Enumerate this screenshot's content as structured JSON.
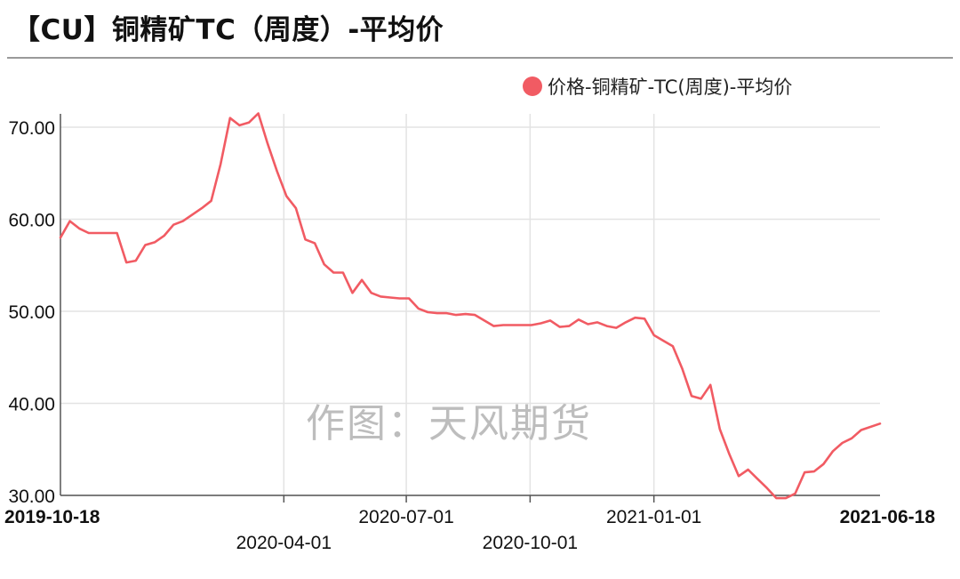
{
  "title": "【CU】铜精矿TC（周度）-平均价",
  "watermark": "作图：天风期货",
  "colors": {
    "series": "#f15b63",
    "grid": "#e3e3e3",
    "axis": "#555555",
    "text": "#111111"
  },
  "chart_data": {
    "type": "line",
    "title": "【CU】铜精矿TC（周度）-平均价",
    "xlabel": "",
    "ylabel": "",
    "ylim": [
      30,
      71
    ],
    "yticks": [
      30,
      40,
      50,
      60,
      70
    ],
    "ytick_labels": [
      "30.00",
      "40.00",
      "50.00",
      "60.00",
      "70.00"
    ],
    "x_tick_labels": [
      {
        "label": "2019-10-18",
        "date": "2019-10-18",
        "bold": true
      },
      {
        "label": "2020-04-01",
        "date": "2020-04-01",
        "bold": false
      },
      {
        "label": "2020-07-01",
        "date": "2020-07-01",
        "bold": false
      },
      {
        "label": "2020-10-01",
        "date": "2020-10-01",
        "bold": false
      },
      {
        "label": "2021-01-01",
        "date": "2021-01-01",
        "bold": false
      },
      {
        "label": "2021-06-18",
        "date": "2021-06-18",
        "bold": true
      }
    ],
    "grid": true,
    "legend_position": "top-right",
    "series": [
      {
        "name": "价格-铜精矿-TC(周度)-平均价",
        "color": "#f15b63",
        "points": [
          [
            "2019-10-18",
            58.0
          ],
          [
            "2019-10-25",
            59.8
          ],
          [
            "2019-11-01",
            59.0
          ],
          [
            "2019-11-08",
            58.5
          ],
          [
            "2019-11-15",
            58.5
          ],
          [
            "2019-11-22",
            58.5
          ],
          [
            "2019-11-29",
            58.5
          ],
          [
            "2019-12-06",
            55.3
          ],
          [
            "2019-12-13",
            55.5
          ],
          [
            "2019-12-20",
            57.2
          ],
          [
            "2019-12-27",
            57.5
          ],
          [
            "2020-01-03",
            58.2
          ],
          [
            "2020-01-10",
            59.4
          ],
          [
            "2020-01-17",
            59.8
          ],
          [
            "2020-01-24",
            60.5
          ],
          [
            "2020-01-31",
            61.2
          ],
          [
            "2020-02-07",
            62.0
          ],
          [
            "2020-02-14",
            66.0
          ],
          [
            "2020-02-21",
            71.0
          ],
          [
            "2020-02-28",
            70.2
          ],
          [
            "2020-03-06",
            70.5
          ],
          [
            "2020-03-13",
            71.5
          ],
          [
            "2020-03-20",
            68.2
          ],
          [
            "2020-03-27",
            65.2
          ],
          [
            "2020-04-03",
            62.5
          ],
          [
            "2020-04-10",
            61.2
          ],
          [
            "2020-04-17",
            57.8
          ],
          [
            "2020-04-24",
            57.4
          ],
          [
            "2020-05-01",
            55.1
          ],
          [
            "2020-05-08",
            54.2
          ],
          [
            "2020-05-15",
            54.2
          ],
          [
            "2020-05-22",
            52.0
          ],
          [
            "2020-05-29",
            53.4
          ],
          [
            "2020-06-05",
            52.0
          ],
          [
            "2020-06-12",
            51.6
          ],
          [
            "2020-06-19",
            51.5
          ],
          [
            "2020-06-26",
            51.4
          ],
          [
            "2020-07-03",
            51.4
          ],
          [
            "2020-07-10",
            50.3
          ],
          [
            "2020-07-17",
            49.9
          ],
          [
            "2020-07-24",
            49.8
          ],
          [
            "2020-07-31",
            49.8
          ],
          [
            "2020-08-07",
            49.6
          ],
          [
            "2020-08-14",
            49.7
          ],
          [
            "2020-08-21",
            49.6
          ],
          [
            "2020-08-28",
            49.0
          ],
          [
            "2020-09-04",
            48.4
          ],
          [
            "2020-09-11",
            48.5
          ],
          [
            "2020-09-18",
            48.5
          ],
          [
            "2020-09-25",
            48.5
          ],
          [
            "2020-10-02",
            48.5
          ],
          [
            "2020-10-09",
            48.7
          ],
          [
            "2020-10-16",
            49.0
          ],
          [
            "2020-10-23",
            48.3
          ],
          [
            "2020-10-30",
            48.4
          ],
          [
            "2020-11-06",
            49.1
          ],
          [
            "2020-11-13",
            48.6
          ],
          [
            "2020-11-20",
            48.8
          ],
          [
            "2020-11-27",
            48.4
          ],
          [
            "2020-12-04",
            48.2
          ],
          [
            "2020-12-11",
            48.8
          ],
          [
            "2020-12-18",
            49.3
          ],
          [
            "2020-12-25",
            49.2
          ],
          [
            "2021-01-01",
            47.4
          ],
          [
            "2021-01-08",
            46.8
          ],
          [
            "2021-01-15",
            46.2
          ],
          [
            "2021-01-22",
            43.8
          ],
          [
            "2021-01-29",
            40.8
          ],
          [
            "2021-02-05",
            40.5
          ],
          [
            "2021-02-12",
            42.0
          ],
          [
            "2021-02-19",
            37.2
          ],
          [
            "2021-02-26",
            34.5
          ],
          [
            "2021-03-05",
            32.1
          ],
          [
            "2021-03-12",
            32.8
          ],
          [
            "2021-03-19",
            31.8
          ],
          [
            "2021-03-26",
            30.8
          ],
          [
            "2021-04-02",
            29.7
          ],
          [
            "2021-04-09",
            29.7
          ],
          [
            "2021-04-16",
            30.2
          ],
          [
            "2021-04-23",
            32.5
          ],
          [
            "2021-04-30",
            32.6
          ],
          [
            "2021-05-07",
            33.4
          ],
          [
            "2021-05-14",
            34.8
          ],
          [
            "2021-05-21",
            35.7
          ],
          [
            "2021-05-28",
            36.2
          ],
          [
            "2021-06-04",
            37.1
          ],
          [
            "2021-06-18",
            37.8
          ]
        ]
      }
    ]
  }
}
